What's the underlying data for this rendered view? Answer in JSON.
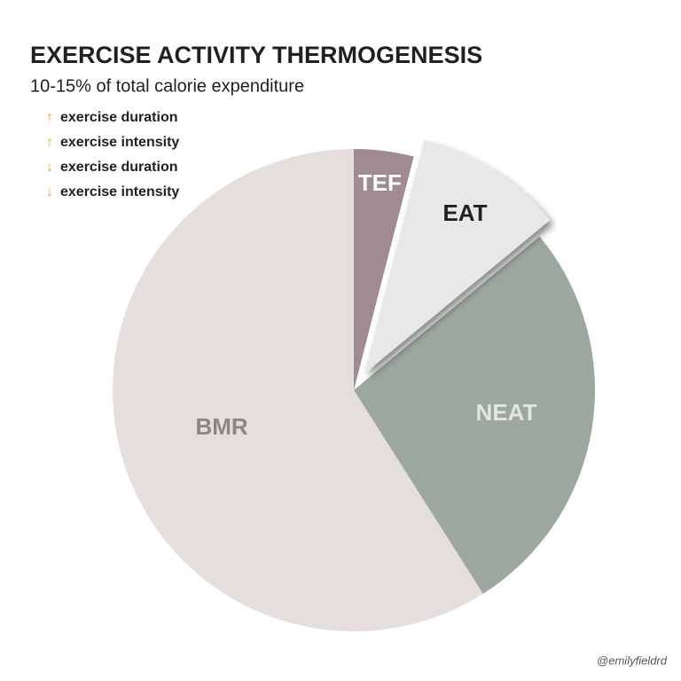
{
  "chart_data": {
    "type": "pie",
    "title": "EXERCISE ACTIVITY THERMOGENESIS",
    "subtitle": "10-15% of total calorie expenditure",
    "categories": [
      "TEF",
      "EAT",
      "NEAT",
      "BMR"
    ],
    "values": [
      4,
      10,
      27,
      59
    ],
    "colors": [
      "#9f8b90",
      "#e8e8ea",
      "#9ba79f",
      "#e4dedd"
    ],
    "label_colors": [
      "#ffffff",
      "#231f20",
      "#e4e4e4",
      "#8d8586"
    ],
    "explode": [
      false,
      true,
      false,
      false
    ],
    "legend": [
      {
        "arrow": "↑",
        "text": "exercise duration"
      },
      {
        "arrow": "↑",
        "text": "exercise intensity"
      },
      {
        "arrow": "↓",
        "text": "exercise duration"
      },
      {
        "arrow": "↓",
        "text": "exercise intensity"
      }
    ],
    "arrow_color": "#e8a820",
    "credit": "@emilyfieldrd"
  }
}
